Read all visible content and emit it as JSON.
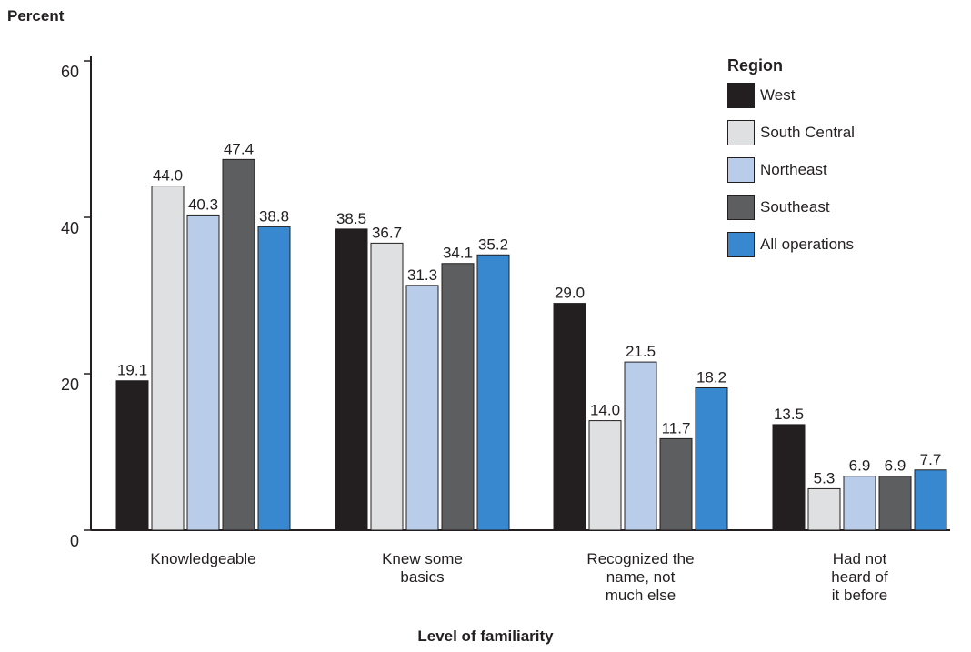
{
  "chart_data": {
    "type": "bar",
    "ylabel": "Percent",
    "xlabel": "Level of familiarity",
    "ylim": [
      0,
      60
    ],
    "yticks": [
      0,
      20,
      40,
      60
    ],
    "grid": false,
    "legend_title": "Region",
    "legend_position": "top-right",
    "categories": [
      [
        "Knowledgeable"
      ],
      [
        "Knew some",
        "basics"
      ],
      [
        "Recognized the",
        "name, not",
        "much else"
      ],
      [
        "Had not",
        "heard of",
        "it before"
      ]
    ],
    "series": [
      {
        "name": "West",
        "color": "#231f20",
        "values": [
          19.1,
          38.5,
          29.0,
          13.5
        ],
        "labels": [
          "19.1",
          "38.5",
          "29.0",
          "13.5"
        ]
      },
      {
        "name": "South Central",
        "color": "#dfe0e1",
        "values": [
          44.0,
          36.7,
          14.0,
          5.3
        ],
        "labels": [
          "44.0",
          "36.7",
          "14.0",
          "5.3"
        ]
      },
      {
        "name": "Northeast",
        "color": "#b9cce9",
        "values": [
          40.3,
          31.3,
          21.5,
          6.9
        ],
        "labels": [
          "40.3",
          "31.3",
          "21.5",
          "6.9"
        ]
      },
      {
        "name": "Southeast",
        "color": "#5d5e60",
        "values": [
          47.4,
          34.1,
          11.7,
          6.9
        ],
        "labels": [
          "47.4",
          "34.1",
          "11.7",
          "6.9"
        ]
      },
      {
        "name": "All operations",
        "color": "#3888cf",
        "values": [
          38.8,
          35.2,
          18.2,
          7.7
        ],
        "labels": [
          "38.8",
          "35.2",
          "18.2",
          "7.7"
        ]
      }
    ]
  }
}
